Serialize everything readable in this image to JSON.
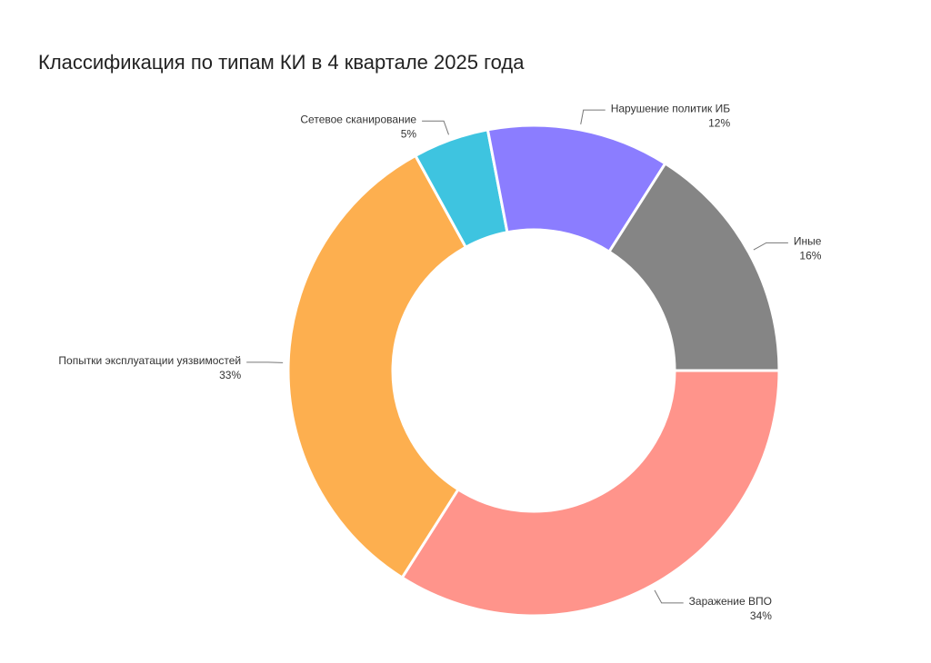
{
  "chart_data": {
    "type": "donut",
    "title": "Классификация по типам КИ в 4 квартале 2025 года",
    "categories": [
      "Заражение ВПО",
      "Попытки эксплуатации уязвимостей",
      "Сетевое сканирование",
      "Нарушение политик ИБ",
      "Иные"
    ],
    "values": [
      34,
      33,
      5,
      12,
      16
    ],
    "value_labels": [
      "34%",
      "33%",
      "5%",
      "12%",
      "16%"
    ],
    "colors": [
      "#ff948b",
      "#fdaf4f",
      "#3ec4e0",
      "#8b7dff",
      "#858585"
    ]
  }
}
